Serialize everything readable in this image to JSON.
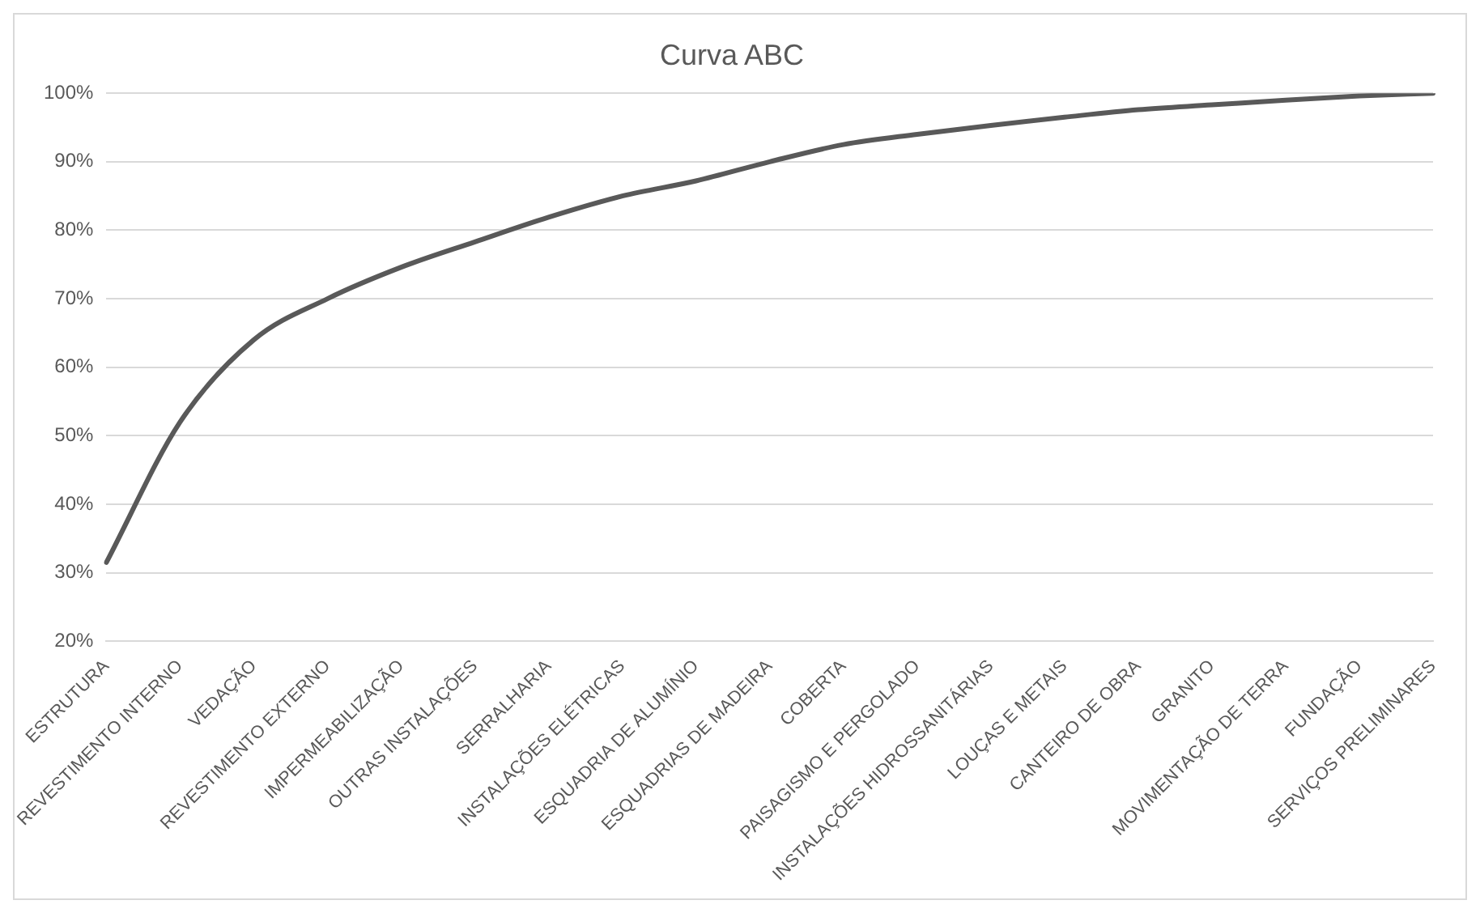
{
  "chart_data": {
    "type": "line",
    "title": "Curva ABC",
    "categories": [
      "ESTRUTURA",
      "REVESTIMENTO INTERNO",
      "VEDAÇÃO",
      "REVESTIMENTO EXTERNO",
      "IMPERMEABILIZAÇÃO",
      "OUTRAS INSTALAÇÕES",
      "SERRALHARIA",
      "INSTALAÇÕES ELÉTRICAS",
      "ESQUADRIA DE ALUMÍNIO",
      "ESQUADRIAS DE MADEIRA",
      "COBERTA",
      "PAISAGISMO E PERGOLADO",
      "INSTALAÇÕES HIDROSSANITÁRIAS",
      "LOUÇAS E METAIS",
      "CANTEIRO DE OBRA",
      "GRANITO",
      "MOVIMENTAÇÃO DE TERRA",
      "FUNDAÇÃO",
      "SERVIÇOS PRELIMINARES"
    ],
    "series": [
      {
        "color": "#595959",
        "values": [
          31.5,
          52,
          64,
          70,
          74.6,
          78.3,
          81.9,
          85,
          87.2,
          90,
          92.5,
          94,
          95.3,
          96.5,
          97.6,
          98.3,
          99,
          99.6,
          100
        ]
      }
    ],
    "ylim": [
      20,
      100
    ],
    "yticks": [
      {
        "value": 20,
        "label": "20%"
      },
      {
        "value": 30,
        "label": "30%"
      },
      {
        "value": 40,
        "label": "40%"
      },
      {
        "value": 50,
        "label": "50%"
      },
      {
        "value": 60,
        "label": "60%"
      },
      {
        "value": 70,
        "label": "70%"
      },
      {
        "value": 80,
        "label": "80%"
      },
      {
        "value": 90,
        "label": "90%"
      },
      {
        "value": 100,
        "label": "100%"
      }
    ],
    "grid": "y",
    "legend": false,
    "marker": "none",
    "line_style": "solid"
  }
}
